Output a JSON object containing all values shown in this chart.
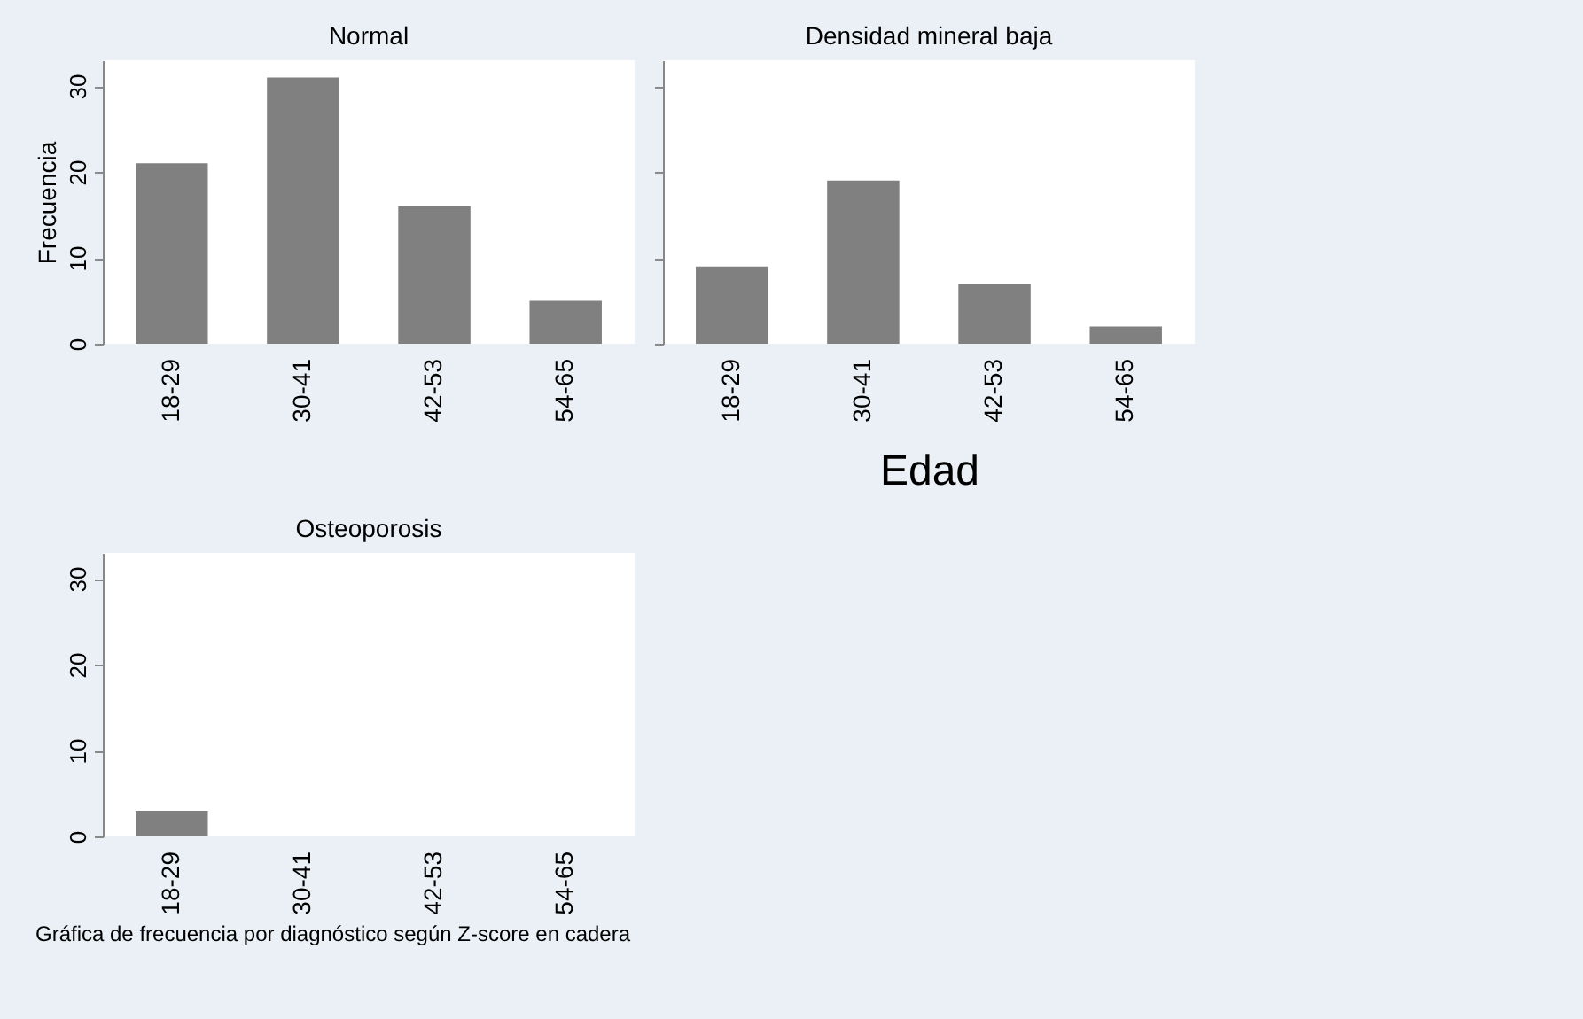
{
  "chart_data": [
    {
      "type": "bar",
      "title": "Normal",
      "ylabel": "Frecuencia",
      "categories": [
        "18-29",
        "30-41",
        "42-53",
        "54-65"
      ],
      "values": [
        21,
        31,
        16,
        5
      ],
      "color": "#808080",
      "ylim": [
        0,
        33
      ],
      "yticks": [
        0,
        10,
        20,
        30
      ],
      "grid": false
    },
    {
      "type": "bar",
      "title": "Densidad mineral baja",
      "xlabel": "Edad",
      "categories": [
        "18-29",
        "30-41",
        "42-53",
        "54-65"
      ],
      "values": [
        9,
        19,
        7,
        2
      ],
      "color": "#808080",
      "ylim": [
        0,
        33
      ],
      "yticks": [
        0,
        10,
        20,
        30
      ],
      "grid": false,
      "tick_labels": "x"
    },
    {
      "type": "bar",
      "title": "Osteoporosis",
      "categories": [
        "18-29",
        "30-41",
        "42-53",
        "54-65"
      ],
      "values": [
        3,
        0,
        0,
        0
      ],
      "color": "#808080",
      "ylim": [
        0,
        33
      ],
      "yticks": [
        0,
        10,
        20,
        30
      ],
      "grid": false,
      "annotations": [
        "Gráfica de frecuencia por diagnóstico según Z-score en cadera"
      ]
    }
  ]
}
